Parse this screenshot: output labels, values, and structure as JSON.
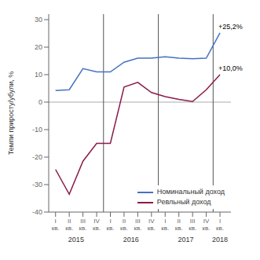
{
  "chart_data": {
    "type": "line",
    "categories": [
      "I\nкв.",
      "II\nкв.",
      "III\nкв.",
      "IV\nкв.",
      "I\nкв.",
      "II\nкв.",
      "III\nкв.",
      "IV\nкв.",
      "I\nкв.",
      "II\nкв.",
      "III\nкв.",
      "IV\nкв.",
      "I\nкв."
    ],
    "series": [
      {
        "name": "Номинальный доход",
        "color": "#4472C4",
        "values": [
          4.2,
          4.5,
          12.2,
          11.0,
          11.0,
          14.5,
          16.0,
          16.0,
          16.5,
          16.0,
          15.8,
          16.0,
          25.2
        ]
      },
      {
        "name": "Ревльный доход",
        "color": "#8B1A4A",
        "values": [
          -24.5,
          -33.5,
          -21.5,
          -15.0,
          -15.0,
          5.5,
          7.2,
          3.5,
          2.0,
          1.0,
          0.2,
          4.5,
          10.0
        ]
      }
    ],
    "y_label": "Темпи приросту/убули, %",
    "ylim": [
      -40,
      32
    ],
    "yticks": [
      -40,
      -30,
      -20,
      -10,
      0,
      10,
      20,
      30
    ],
    "legend": "lower right",
    "grid": false,
    "annotations": [
      {
        "text": "+25,2%",
        "x": 12,
        "y": 25.2
      },
      {
        "text": "+10,0%",
        "x": 12,
        "y": 10.0
      }
    ],
    "year_labels": [
      {
        "label": "2015",
        "x": 1.5
      },
      {
        "label": "2016",
        "x": 5.5
      },
      {
        "label": "2017",
        "x": 9.5
      },
      {
        "label": "2018",
        "x": 12.0
      }
    ],
    "vlines": [
      3.5,
      7.5,
      11.5
    ],
    "hlines": [
      0
    ]
  }
}
